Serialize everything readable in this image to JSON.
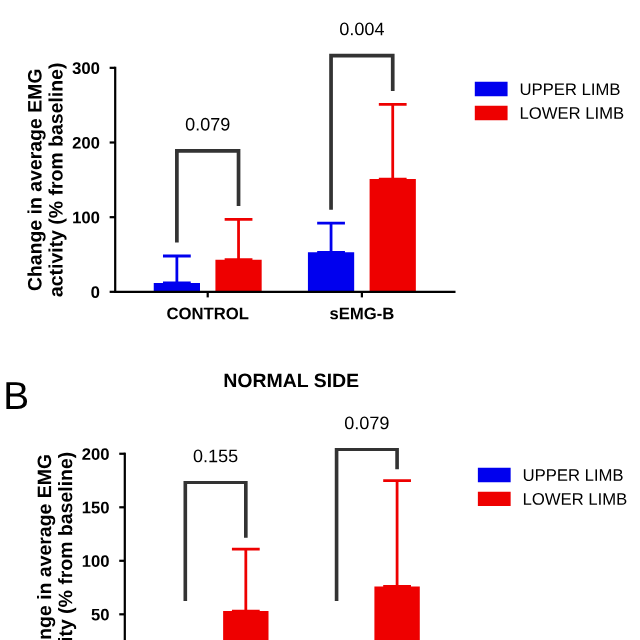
{
  "chart_data": [
    {
      "type": "bar",
      "ylabel": "Change in average EMG\nactivity (% from baseline)",
      "categories": [
        "CONTROL",
        "sEMG-B"
      ],
      "series": [
        {
          "name": "UPPER LIMB",
          "color": "#0000ee",
          "values": [
            12,
            53
          ],
          "errors": [
            36,
            39
          ]
        },
        {
          "name": "LOWER LIMB",
          "color": "#ee0000",
          "values": [
            43,
            151
          ],
          "errors": [
            54,
            100
          ]
        }
      ],
      "ylim": [
        0,
        300
      ],
      "yticks": [
        0,
        100,
        200,
        300
      ],
      "grid": false,
      "legend": "right",
      "annotations": [
        "0.079",
        "0.004"
      ]
    },
    {
      "type": "bar",
      "title": "NORMAL SIDE",
      "ylabel": "nge in average EMG\nity (% from baseline)",
      "categories": [
        null,
        null
      ],
      "series": [
        {
          "name": "UPPER LIMB",
          "color": "#0000ee",
          "values": [
            null,
            null
          ]
        },
        {
          "name": "LOWER LIMB",
          "color": "#ee0000",
          "values": [
            53,
            76
          ],
          "errors": [
            58,
            99
          ]
        }
      ],
      "ylim": [
        26,
        200
      ],
      "yticks": [
        50,
        100,
        150,
        200
      ],
      "grid": false,
      "legend": "right",
      "annotations": [
        "B",
        "0.155",
        "0.079"
      ]
    }
  ]
}
